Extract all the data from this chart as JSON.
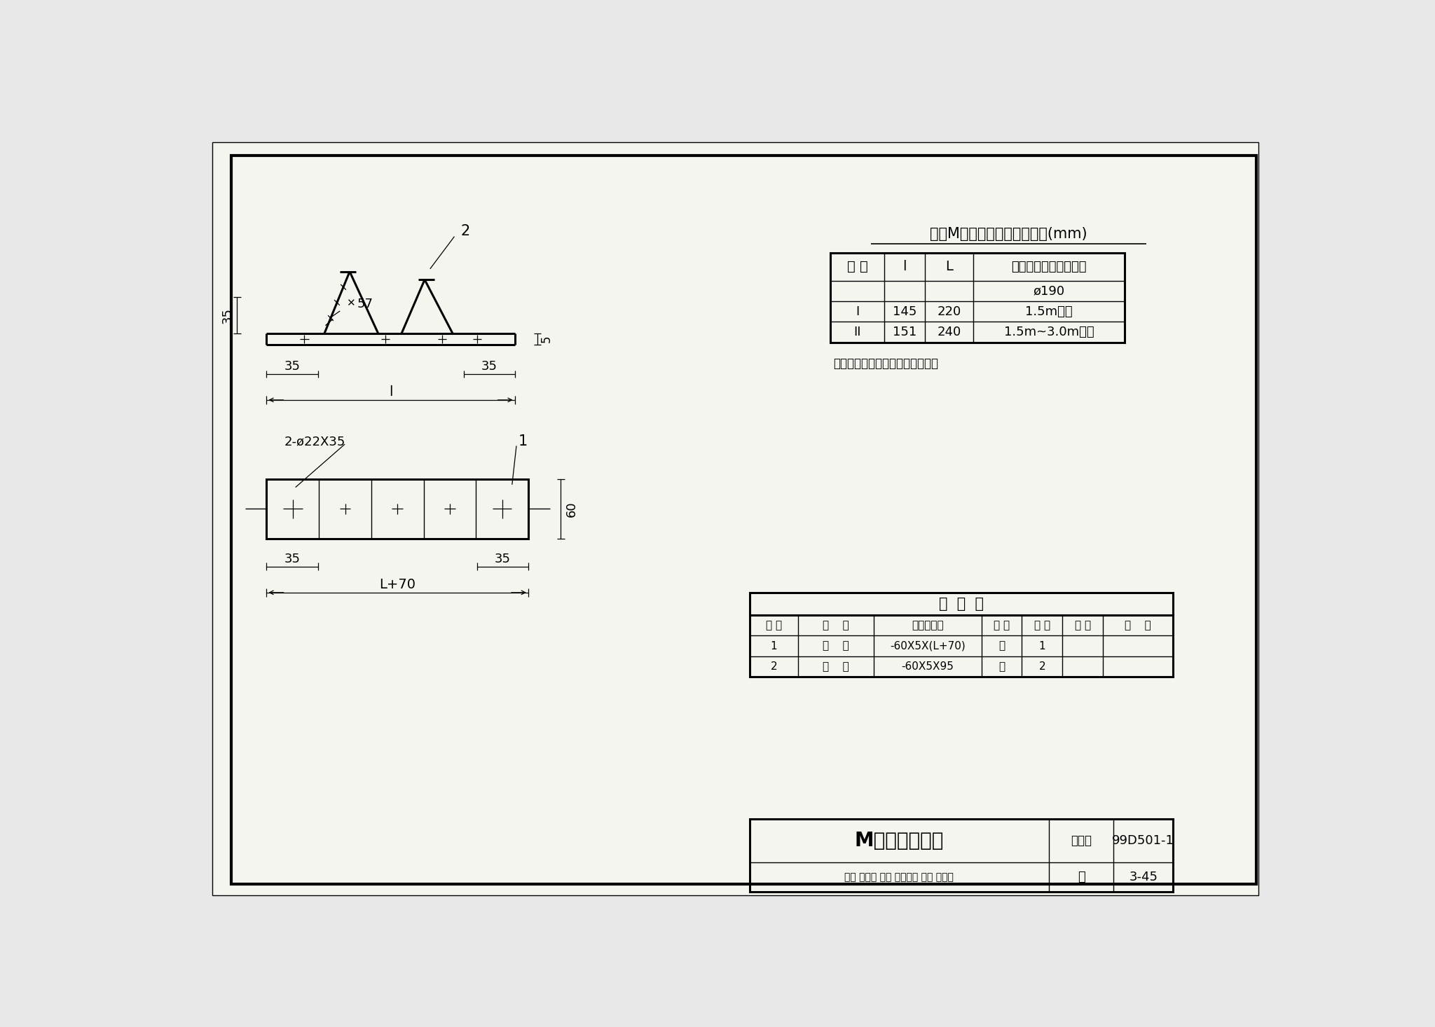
{
  "bg_color": "#e8e8e8",
  "paper_color": "#f5f5f0",
  "border_color": "#000000",
  "title": "M形抱铁制造图",
  "atlas_no": "99D501-1",
  "page": "3-45",
  "atlas_label": "图集号",
  "page_label": "页",
  "table_title": "各型M形抱铁尺寸及适用范围(mm)",
  "table_header_col0": "型 号",
  "table_header_col1": "l",
  "table_header_col2": "L",
  "table_header_col3": "电杆梢径及距杆顶距离",
  "table_subheader": "ø190",
  "table_rows": [
    [
      "I",
      "145",
      "220",
      "1.5m以内"
    ],
    [
      "II",
      "151",
      "240",
      "1.5m~3.0m以内"
    ]
  ],
  "note": "注：所有零件均应作热镀锌处理。",
  "materials_title": "材  料  表",
  "mat_headers": [
    "编 号",
    "名    称",
    "型号及规格",
    "单 位",
    "数 量",
    "页 次",
    "备    注"
  ],
  "mat_rows": [
    [
      "1",
      "扁    钢",
      "-60X5X(L+70)",
      "块",
      "1",
      "",
      ""
    ],
    [
      "2",
      "扁    钢",
      "-60X5X95",
      "块",
      "2",
      "",
      ""
    ]
  ],
  "dim_35_top": "35",
  "dim_5": "5",
  "dim_57": "57",
  "dim_35_left": "35",
  "dim_35_right": "35",
  "dim_L": "l",
  "dim_phi_label": "2-ø22X35",
  "dim_60": "60",
  "dim_35_bl": "35",
  "dim_35_br": "35",
  "dim_L70": "L+70",
  "label_1": "1",
  "label_2": "2",
  "review_text": "审核 主组收 校对 复查签名 设计 郑立刀"
}
